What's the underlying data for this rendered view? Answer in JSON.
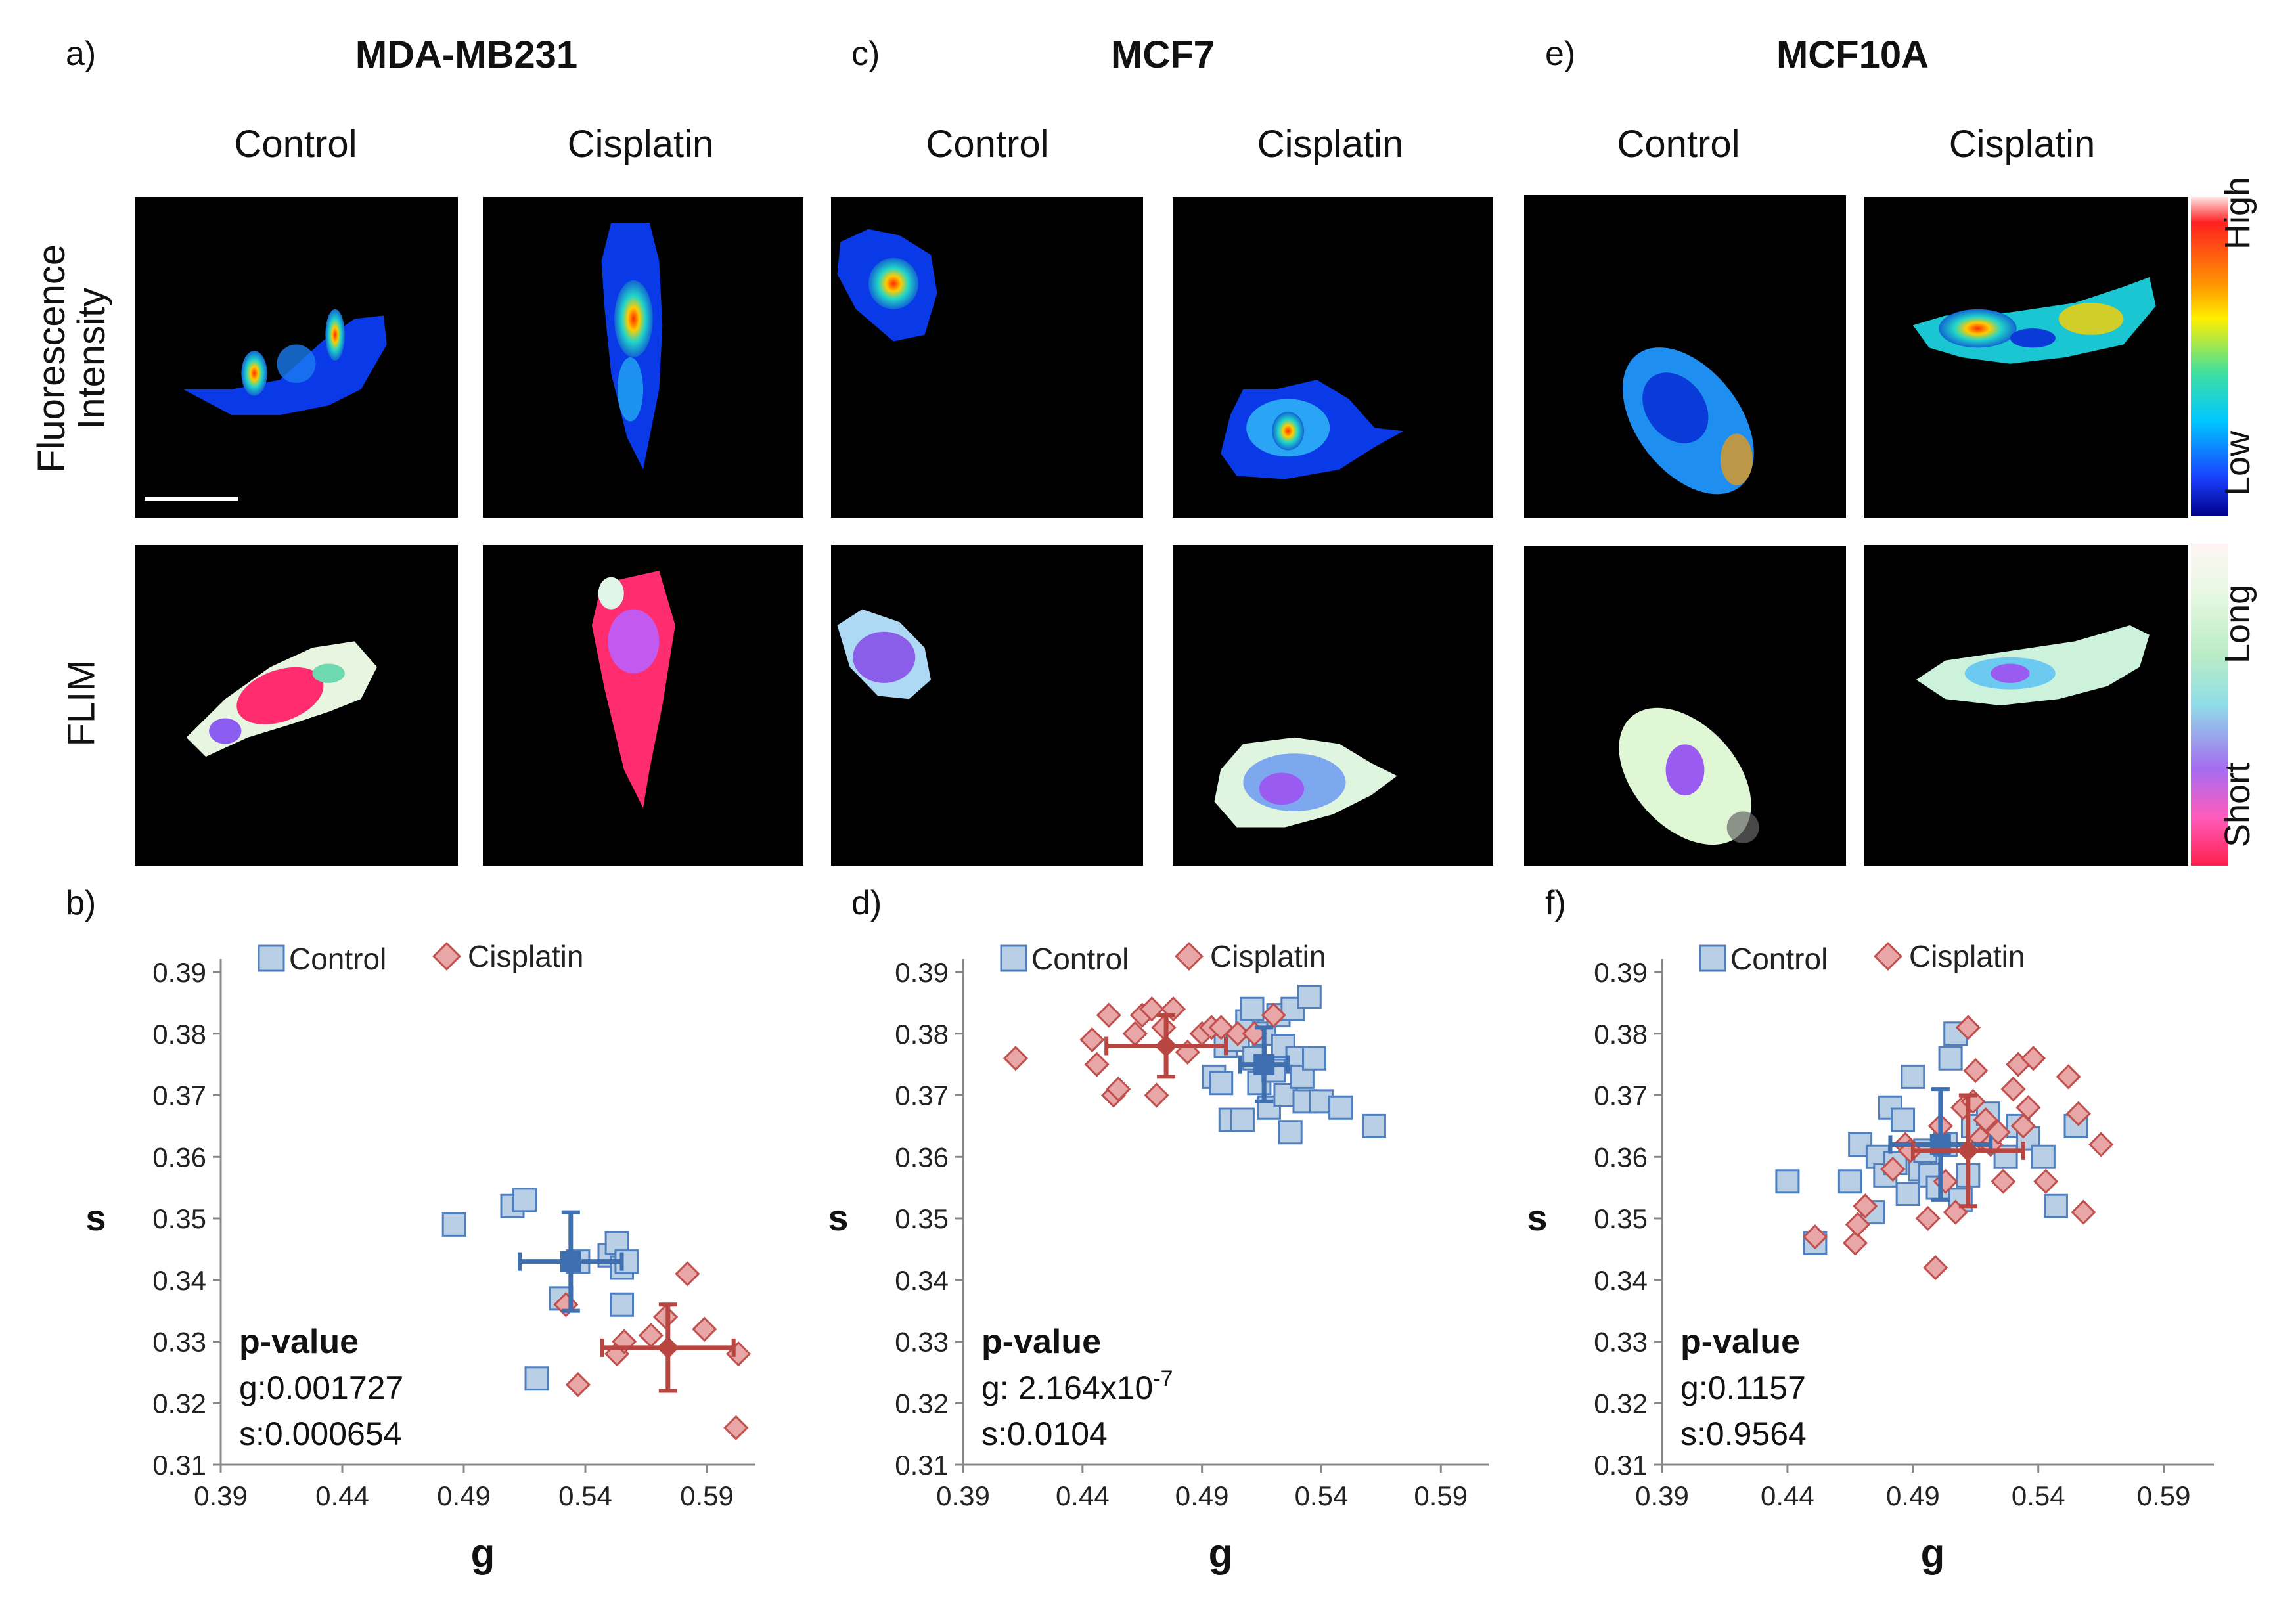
{
  "panels": {
    "a": "a)",
    "b": "b)",
    "c": "c)",
    "d": "d)",
    "e": "e)",
    "f": "f)"
  },
  "cell_lines": [
    "MDA-MB231",
    "MCF7",
    "MCF10A"
  ],
  "conditions": [
    "Control",
    "Cisplatin"
  ],
  "row_labels": {
    "intensity_1": "Fluorescence",
    "intensity_2": "Intensity",
    "flim": "FLIM"
  },
  "colorbars": {
    "intensity": {
      "high": "High",
      "low": "Low"
    },
    "flim": {
      "long": "Long",
      "short": "Short"
    }
  },
  "legend": {
    "control": "Control",
    "cisplatin": "Cisplatin"
  },
  "colors": {
    "control_fill": "#b9cfe6",
    "control_stroke": "#4f7fbf",
    "control_mean": "#3e6fb0",
    "cisplatin_fill": "#e8a6a6",
    "cisplatin_stroke": "#c0504d",
    "cisplatin_mean": "#b8453f"
  },
  "chart_data": [
    {
      "type": "scatter",
      "panel": "b)",
      "title": "MDA-MB231",
      "xlabel": "g",
      "ylabel": "s",
      "xlim": [
        0.39,
        0.61
      ],
      "ylim": [
        0.31,
        0.39
      ],
      "xticks": [
        "0.39",
        "0.44",
        "0.49",
        "0.54",
        "0.59"
      ],
      "yticks": [
        "0.31",
        "0.32",
        "0.33",
        "0.34",
        "0.35",
        "0.36",
        "0.37",
        "0.38",
        "0.39"
      ],
      "series": [
        {
          "name": "Control",
          "points": [
            [
              0.486,
              0.349
            ],
            [
              0.51,
              0.352
            ],
            [
              0.515,
              0.353
            ],
            [
              0.52,
              0.324
            ],
            [
              0.53,
              0.337
            ],
            [
              0.537,
              0.343
            ],
            [
              0.55,
              0.344
            ],
            [
              0.553,
              0.346
            ],
            [
              0.555,
              0.342
            ],
            [
              0.557,
              0.343
            ],
            [
              0.555,
              0.336
            ]
          ],
          "mean": [
            0.534,
            0.343
          ],
          "xerr": 0.021,
          "yerr": 0.008
        },
        {
          "name": "Cisplatin",
          "points": [
            [
              0.532,
              0.336
            ],
            [
              0.537,
              0.323
            ],
            [
              0.553,
              0.328
            ],
            [
              0.556,
              0.33
            ],
            [
              0.567,
              0.331
            ],
            [
              0.573,
              0.334
            ],
            [
              0.582,
              0.341
            ],
            [
              0.589,
              0.332
            ],
            [
              0.603,
              0.328
            ],
            [
              0.602,
              0.316
            ]
          ],
          "mean": [
            0.574,
            0.329
          ],
          "xerr": 0.027,
          "yerr": 0.007
        }
      ],
      "stats": {
        "head": "p-value",
        "g": "g:0.001727",
        "s_prefix": "",
        "s_sup": "",
        "s": "s:0.000654"
      }
    },
    {
      "type": "scatter",
      "panel": "d)",
      "title": "MCF7",
      "xlabel": "g",
      "ylabel": "s",
      "xlim": [
        0.39,
        0.61
      ],
      "ylim": [
        0.31,
        0.39
      ],
      "xticks": [
        "0.39",
        "0.44",
        "0.49",
        "0.54",
        "0.59"
      ],
      "yticks": [
        "0.31",
        "0.32",
        "0.33",
        "0.34",
        "0.35",
        "0.36",
        "0.37",
        "0.38",
        "0.39"
      ],
      "series": [
        {
          "name": "Control",
          "points": [
            [
              0.495,
              0.373
            ],
            [
              0.498,
              0.372
            ],
            [
              0.5,
              0.378
            ],
            [
              0.502,
              0.366
            ],
            [
              0.505,
              0.379
            ],
            [
              0.507,
              0.366
            ],
            [
              0.509,
              0.382
            ],
            [
              0.511,
              0.384
            ],
            [
              0.512,
              0.376
            ],
            [
              0.514,
              0.372
            ],
            [
              0.516,
              0.38
            ],
            [
              0.518,
              0.368
            ],
            [
              0.52,
              0.374
            ],
            [
              0.522,
              0.383
            ],
            [
              0.524,
              0.378
            ],
            [
              0.525,
              0.37
            ],
            [
              0.527,
              0.364
            ],
            [
              0.528,
              0.384
            ],
            [
              0.53,
              0.376
            ],
            [
              0.532,
              0.373
            ],
            [
              0.533,
              0.369
            ],
            [
              0.535,
              0.386
            ],
            [
              0.537,
              0.376
            ],
            [
              0.54,
              0.369
            ],
            [
              0.548,
              0.368
            ],
            [
              0.562,
              0.365
            ]
          ],
          "mean": [
            0.516,
            0.375
          ],
          "xerr": 0.01,
          "yerr": 0.006
        },
        {
          "name": "Cisplatin",
          "points": [
            [
              0.412,
              0.376
            ],
            [
              0.444,
              0.379
            ],
            [
              0.446,
              0.375
            ],
            [
              0.451,
              0.383
            ],
            [
              0.453,
              0.37
            ],
            [
              0.455,
              0.371
            ],
            [
              0.462,
              0.38
            ],
            [
              0.465,
              0.383
            ],
            [
              0.469,
              0.384
            ],
            [
              0.471,
              0.37
            ],
            [
              0.474,
              0.381
            ],
            [
              0.478,
              0.384
            ],
            [
              0.484,
              0.377
            ],
            [
              0.49,
              0.38
            ],
            [
              0.494,
              0.381
            ],
            [
              0.498,
              0.381
            ],
            [
              0.505,
              0.38
            ],
            [
              0.512,
              0.38
            ],
            [
              0.52,
              0.383
            ]
          ],
          "mean": [
            0.475,
            0.378
          ],
          "xerr": 0.025,
          "yerr": 0.005
        }
      ],
      "stats": {
        "head": "p-value",
        "g": "",
        "s_prefix": "g: 2.164x10",
        "s_sup": "-7",
        "s": "s:0.0104"
      }
    },
    {
      "type": "scatter",
      "panel": "f)",
      "title": "MCF10A",
      "xlabel": "g",
      "ylabel": "s",
      "xlim": [
        0.39,
        0.61
      ],
      "ylim": [
        0.31,
        0.39
      ],
      "xticks": [
        "0.39",
        "0.44",
        "0.49",
        "0.54",
        "0.59"
      ],
      "yticks": [
        "0.31",
        "0.32",
        "0.33",
        "0.34",
        "0.35",
        "0.36",
        "0.37",
        "0.38",
        "0.39"
      ],
      "series": [
        {
          "name": "Control",
          "points": [
            [
              0.44,
              0.356
            ],
            [
              0.451,
              0.346
            ],
            [
              0.465,
              0.356
            ],
            [
              0.469,
              0.362
            ],
            [
              0.474,
              0.351
            ],
            [
              0.476,
              0.36
            ],
            [
              0.479,
              0.357
            ],
            [
              0.481,
              0.368
            ],
            [
              0.483,
              0.359
            ],
            [
              0.486,
              0.366
            ],
            [
              0.488,
              0.354
            ],
            [
              0.49,
              0.373
            ],
            [
              0.493,
              0.358
            ],
            [
              0.495,
              0.361
            ],
            [
              0.497,
              0.357
            ],
            [
              0.5,
              0.355
            ],
            [
              0.503,
              0.362
            ],
            [
              0.505,
              0.376
            ],
            [
              0.507,
              0.38
            ],
            [
              0.509,
              0.353
            ],
            [
              0.512,
              0.357
            ],
            [
              0.514,
              0.365
            ],
            [
              0.52,
              0.367
            ],
            [
              0.527,
              0.36
            ],
            [
              0.532,
              0.365
            ],
            [
              0.536,
              0.363
            ],
            [
              0.542,
              0.36
            ],
            [
              0.547,
              0.352
            ],
            [
              0.555,
              0.365
            ]
          ],
          "mean": [
            0.501,
            0.362
          ],
          "xerr": 0.02,
          "yerr": 0.009
        },
        {
          "name": "Cisplatin",
          "points": [
            [
              0.451,
              0.347
            ],
            [
              0.467,
              0.346
            ],
            [
              0.468,
              0.349
            ],
            [
              0.471,
              0.352
            ],
            [
              0.482,
              0.358
            ],
            [
              0.487,
              0.362
            ],
            [
              0.489,
              0.361
            ],
            [
              0.496,
              0.35
            ],
            [
              0.499,
              0.342
            ],
            [
              0.501,
              0.365
            ],
            [
              0.503,
              0.356
            ],
            [
              0.507,
              0.351
            ],
            [
              0.51,
              0.368
            ],
            [
              0.512,
              0.381
            ],
            [
              0.514,
              0.369
            ],
            [
              0.515,
              0.374
            ],
            [
              0.517,
              0.363
            ],
            [
              0.519,
              0.366
            ],
            [
              0.521,
              0.362
            ],
            [
              0.524,
              0.364
            ],
            [
              0.526,
              0.356
            ],
            [
              0.53,
              0.371
            ],
            [
              0.532,
              0.375
            ],
            [
              0.534,
              0.365
            ],
            [
              0.536,
              0.368
            ],
            [
              0.538,
              0.376
            ],
            [
              0.543,
              0.356
            ],
            [
              0.552,
              0.373
            ],
            [
              0.556,
              0.367
            ],
            [
              0.558,
              0.351
            ],
            [
              0.565,
              0.362
            ]
          ],
          "mean": [
            0.512,
            0.361
          ],
          "xerr": 0.022,
          "yerr": 0.009
        }
      ],
      "stats": {
        "head": "p-value",
        "g": "g:0.1157",
        "s_prefix": "",
        "s_sup": "",
        "s": "s:0.9564"
      }
    }
  ]
}
